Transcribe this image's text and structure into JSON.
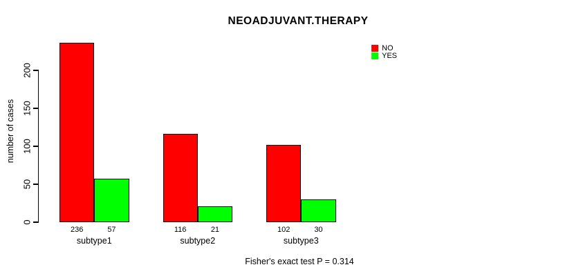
{
  "chart_data": {
    "type": "bar",
    "title": "NEOADJUVANT.THERAPY",
    "xlabel": "",
    "ylabel": "number of cases",
    "categories": [
      "subtype1",
      "subtype2",
      "subtype3"
    ],
    "series": [
      {
        "name": "NO",
        "color": "#FF0000",
        "values": [
          236,
          116,
          102
        ]
      },
      {
        "name": "YES",
        "color": "#00FF00",
        "values": [
          57,
          21,
          30
        ]
      }
    ],
    "bar_value_labels": [
      [
        "236",
        "116",
        "102"
      ],
      [
        "57",
        "21",
        "30"
      ]
    ],
    "yticks": [
      0,
      50,
      100,
      150,
      200
    ],
    "ylim": [
      0,
      236
    ],
    "grid": false,
    "legend_position": "top-right",
    "annotation": "Fisher's exact test P = 0.314"
  },
  "colors": {
    "no_bar": "#FF0000",
    "yes_bar": "#00FF00",
    "axis": "#000000",
    "background": "#FFFFFF"
  }
}
